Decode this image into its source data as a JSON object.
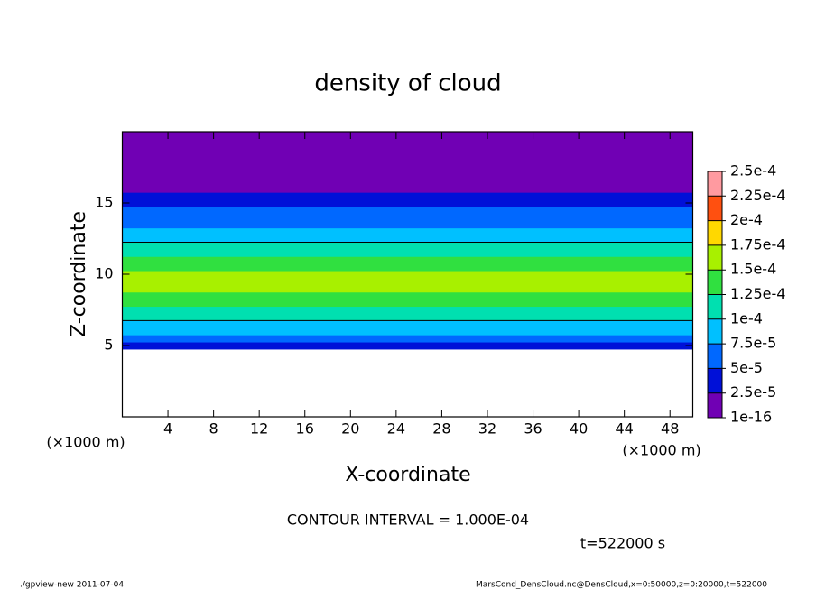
{
  "chart_data": {
    "type": "heatmap",
    "title": "density of cloud",
    "x_label": "X-coordinate",
    "y_label": "Z-coordinate",
    "x_unit_label": "(×1000 m)",
    "contour_label": "CONTOUR INTERVAL = 1.000E-04",
    "contour_interval": 0.0001,
    "time_label": "t=522000 s",
    "footer_left": "./gpview-new  2011-07-04",
    "footer_right": "MarsCond_DensCloud.nc@DensCloud,x=0:50000,z=0:20000,t=522000",
    "xlim": [
      0,
      50
    ],
    "xticks": [
      4,
      8,
      12,
      16,
      20,
      24,
      28,
      32,
      36,
      40,
      44,
      48
    ],
    "ylim": [
      0,
      20
    ],
    "yticks": [
      5,
      10,
      15
    ],
    "z_edges": [
      4.75,
      5.25,
      5.75,
      6.25,
      6.75,
      7.25,
      7.75,
      8.25,
      8.75,
      9.25,
      9.75,
      10.25,
      10.75,
      11.25,
      11.75,
      12.25,
      12.75,
      13.25,
      13.75,
      14.25,
      14.75,
      15.25,
      15.75,
      16.25,
      16.75,
      17.25,
      17.75,
      18.25,
      18.75,
      19.25,
      19.75,
      20
    ],
    "values": [
      3e-05,
      6e-05,
      8e-05,
      9e-05,
      0.000105,
      0.00012,
      0.000135,
      0.000145,
      0.000155,
      0.00016,
      0.000155,
      0.000145,
      0.000135,
      0.00012,
      0.000105,
      9e-05,
      8e-05,
      7e-05,
      6e-05,
      5e-05,
      4e-05,
      3e-05,
      2e-05,
      1e-05,
      1e-05,
      1e-05,
      1e-05,
      1e-05,
      1e-05,
      1e-05,
      1e-05
    ],
    "levels": [
      {
        "value": 1e-16,
        "label": "1e-16"
      },
      {
        "value": 2.5e-05,
        "label": "2.5e-5"
      },
      {
        "value": 5e-05,
        "label": "5e-5"
      },
      {
        "value": 7.5e-05,
        "label": "7.5e-5"
      },
      {
        "value": 0.0001,
        "label": "1e-4"
      },
      {
        "value": 0.000125,
        "label": "1.25e-4"
      },
      {
        "value": 0.00015,
        "label": "1.5e-4"
      },
      {
        "value": 0.000175,
        "label": "1.75e-4"
      },
      {
        "value": 0.0002,
        "label": "2e-4"
      },
      {
        "value": 0.000225,
        "label": "2.25e-4"
      },
      {
        "value": 0.00025,
        "label": "2.5e-4"
      }
    ],
    "colors": [
      "#7000b4",
      "#0010d8",
      "#0068ff",
      "#00c0ff",
      "#00e0b0",
      "#30e040",
      "#a8f000",
      "#ffd800",
      "#ff5010",
      "#ff9aa0"
    ]
  }
}
